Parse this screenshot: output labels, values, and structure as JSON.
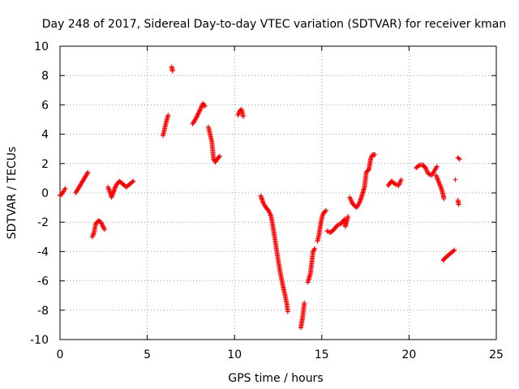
{
  "chart_data": {
    "type": "scatter",
    "title": "Day 248 of 2017, Sidereal Day-to-day VTEC variation (SDTVAR) for receiver kman",
    "xlabel": "GPS time / hours",
    "ylabel": "SDTVAR / TECUs",
    "xlim": [
      0,
      25
    ],
    "ylim": [
      -10,
      10
    ],
    "xticks": [
      "0",
      "5",
      "10",
      "15",
      "20",
      "25"
    ],
    "yticks": [
      "10",
      "8",
      "6",
      "4",
      "2",
      "0",
      "-2",
      "-4",
      "-6",
      "-8",
      "-10"
    ],
    "grid": true,
    "marker": "plus",
    "color": "#ff0000",
    "series": [
      {
        "segments": [
          [
            [
              0.0,
              -0.2
            ],
            [
              0.15,
              0.0
            ],
            [
              0.3,
              0.3
            ]
          ],
          [
            [
              0.9,
              0.0
            ],
            [
              1.1,
              0.4
            ],
            [
              1.3,
              0.8
            ],
            [
              1.5,
              1.2
            ],
            [
              1.6,
              1.4
            ]
          ],
          [
            [
              1.85,
              -3.0
            ],
            [
              1.95,
              -2.7
            ],
            [
              2.05,
              -2.1
            ],
            [
              2.2,
              -1.9
            ],
            [
              2.35,
              -2.0
            ],
            [
              2.55,
              -2.5
            ]
          ],
          [
            [
              2.75,
              0.4
            ],
            [
              2.85,
              0.1
            ],
            [
              2.95,
              -0.3
            ],
            [
              3.05,
              0.0
            ],
            [
              3.2,
              0.5
            ],
            [
              3.4,
              0.8
            ],
            [
              3.6,
              0.6
            ],
            [
              3.8,
              0.4
            ],
            [
              4.0,
              0.6
            ],
            [
              4.2,
              0.8
            ]
          ],
          [
            [
              5.9,
              3.9
            ],
            [
              6.0,
              4.4
            ],
            [
              6.1,
              4.9
            ],
            [
              6.2,
              5.3
            ]
          ],
          [
            [
              6.4,
              8.6
            ],
            [
              6.45,
              8.3
            ]
          ],
          [
            [
              7.6,
              4.7
            ],
            [
              7.8,
              5.1
            ],
            [
              8.0,
              5.6
            ],
            [
              8.2,
              6.1
            ],
            [
              8.3,
              5.9
            ]
          ],
          [
            [
              8.5,
              4.5
            ],
            [
              8.6,
              4.0
            ],
            [
              8.7,
              3.5
            ],
            [
              8.8,
              2.3
            ],
            [
              8.9,
              2.1
            ],
            [
              9.0,
              2.3
            ],
            [
              9.15,
              2.5
            ]
          ],
          [
            [
              10.2,
              5.3
            ],
            [
              10.3,
              5.6
            ],
            [
              10.4,
              5.7
            ],
            [
              10.5,
              5.2
            ]
          ],
          [
            [
              11.5,
              -0.2
            ],
            [
              11.65,
              -0.7
            ],
            [
              11.8,
              -1.0
            ],
            [
              11.95,
              -1.2
            ],
            [
              12.1,
              -1.6
            ],
            [
              12.3,
              -3.0
            ],
            [
              12.45,
              -4.2
            ],
            [
              12.6,
              -5.3
            ],
            [
              12.75,
              -6.2
            ],
            [
              12.9,
              -7.0
            ],
            [
              13.0,
              -7.6
            ],
            [
              13.05,
              -8.1
            ]
          ],
          [
            [
              13.8,
              -9.2
            ],
            [
              13.9,
              -8.5
            ],
            [
              14.0,
              -7.5
            ]
          ],
          [
            [
              14.2,
              -6.1
            ],
            [
              14.35,
              -5.5
            ],
            [
              14.5,
              -4.0
            ],
            [
              14.6,
              -3.8
            ]
          ],
          [
            [
              14.75,
              -3.3
            ],
            [
              14.85,
              -2.8
            ],
            [
              14.95,
              -2.0
            ],
            [
              15.05,
              -1.5
            ],
            [
              15.15,
              -1.3
            ],
            [
              15.25,
              -1.2
            ]
          ],
          [
            [
              15.3,
              -2.6
            ],
            [
              15.5,
              -2.7
            ],
            [
              15.7,
              -2.5
            ],
            [
              15.9,
              -2.2
            ],
            [
              16.1,
              -2.1
            ],
            [
              16.3,
              -1.8
            ],
            [
              16.35,
              -2.3
            ],
            [
              16.5,
              -1.6
            ]
          ],
          [
            [
              16.6,
              -0.3
            ],
            [
              16.75,
              -0.7
            ],
            [
              16.9,
              -0.9
            ],
            [
              17.0,
              -1.0
            ],
            [
              17.15,
              -0.7
            ],
            [
              17.3,
              -0.2
            ],
            [
              17.45,
              0.4
            ],
            [
              17.55,
              1.4
            ],
            [
              17.7,
              1.6
            ],
            [
              17.8,
              2.3
            ],
            [
              17.9,
              2.6
            ],
            [
              18.05,
              2.6
            ]
          ],
          [
            [
              18.8,
              0.5
            ],
            [
              19.0,
              0.8
            ],
            [
              19.2,
              0.6
            ],
            [
              19.4,
              0.5
            ],
            [
              19.55,
              0.9
            ]
          ],
          [
            [
              20.4,
              1.7
            ],
            [
              20.6,
              1.9
            ],
            [
              20.8,
              1.9
            ],
            [
              20.95,
              1.7
            ],
            [
              21.1,
              1.3
            ],
            [
              21.3,
              1.2
            ],
            [
              21.45,
              1.5
            ],
            [
              21.6,
              1.8
            ]
          ],
          [
            [
              21.55,
              1.2
            ],
            [
              21.65,
              0.9
            ],
            [
              21.75,
              0.6
            ],
            [
              21.85,
              0.3
            ],
            [
              21.95,
              -0.1
            ],
            [
              22.0,
              -0.4
            ]
          ],
          [
            [
              21.95,
              -4.6
            ],
            [
              22.1,
              -4.4
            ],
            [
              22.3,
              -4.2
            ],
            [
              22.5,
              -4.0
            ],
            [
              22.6,
              -3.9
            ]
          ],
          [
            [
              22.65,
              0.9
            ]
          ],
          [
            [
              22.8,
              2.4
            ],
            [
              22.9,
              2.3
            ]
          ],
          [
            [
              22.8,
              -0.5
            ],
            [
              22.85,
              -0.8
            ]
          ]
        ]
      }
    ]
  }
}
